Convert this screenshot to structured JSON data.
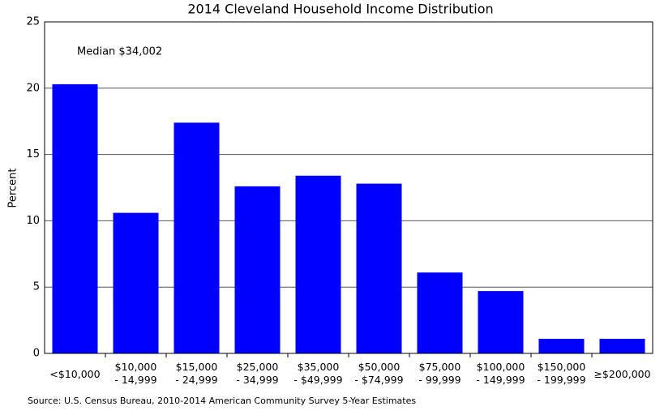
{
  "chart_data": {
    "type": "bar",
    "title": "2014 Cleveland Household Income Distribution",
    "y_label": "Percent",
    "annotation": "Median $34,002",
    "source": "Source: U.S. Census Bureau, 2010-2014 American Community Survey 5-Year Estimates",
    "categories": [
      "<$10,000",
      "$10,000\n- 14,999",
      "$15,000\n- 24,999",
      "$25,000\n- 34,999",
      "$35,000\n- $49,999",
      "$50,000\n- $74,999",
      "$75,000\n- 99,999",
      "$100,000\n- 149,999",
      "$150,000\n- 199,999",
      "≥$200,000"
    ],
    "values": [
      20.3,
      10.6,
      17.4,
      12.6,
      13.4,
      12.8,
      6.1,
      4.7,
      1.1,
      1.1
    ],
    "color": "#0000ff",
    "ylim": [
      0,
      25
    ],
    "yticks": [
      0,
      5,
      10,
      15,
      20,
      25
    ],
    "grid": true
  }
}
